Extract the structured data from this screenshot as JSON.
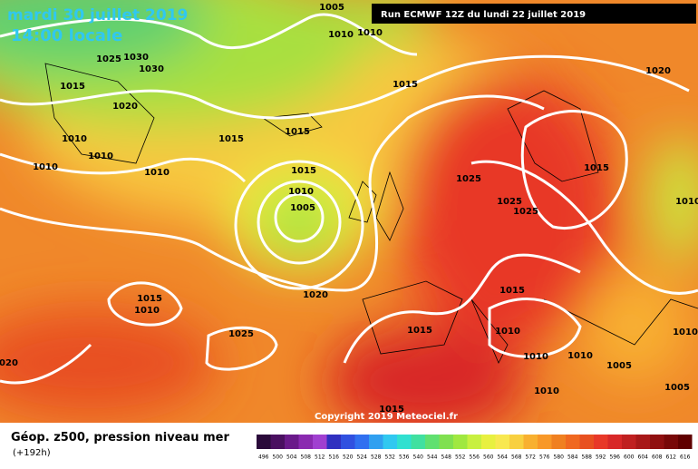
{
  "header": {
    "date": "mardi 30 juillet 2019",
    "time": "14:00 locale",
    "run": "Run ECMWF 12Z du lundi 22 juillet 2019"
  },
  "isobar_labels": [
    1005,
    1010,
    1010,
    1025,
    1030,
    1030,
    1015,
    1020,
    1015,
    1020,
    1015,
    1015,
    1010,
    1010,
    1010,
    1010,
    1015,
    1010,
    1005,
    1025,
    1025,
    1025,
    1015,
    1010,
    1020,
    1015,
    1010,
    1015,
    1025,
    1015,
    1010,
    1010,
    1020,
    1010,
    1010,
    1005,
    1010,
    1005,
    1015
  ],
  "copyright": "Copyright 2019 Meteociel.fr",
  "legend": {
    "title": "Géop. z500, pression niveau mer",
    "subtitle": "(+192h)",
    "scale": [
      496,
      500,
      504,
      508,
      512,
      516,
      520,
      524,
      528,
      532,
      536,
      540,
      544,
      548,
      552,
      556,
      560,
      564,
      568,
      572,
      576,
      580,
      584,
      588,
      592,
      596,
      600,
      604,
      608,
      612,
      616
    ],
    "colors": [
      "#2a0a3a",
      "#4a1060",
      "#6a1a8a",
      "#8a2ab0",
      "#a040d0",
      "#3030c0",
      "#3050e0",
      "#3070f0",
      "#30a0f0",
      "#30c8f0",
      "#30e0d0",
      "#40e0a0",
      "#60e070",
      "#80e050",
      "#a0e840",
      "#c8f040",
      "#e8f040",
      "#f8e850",
      "#f8d040",
      "#f8b030",
      "#f89828",
      "#f08020",
      "#f06820",
      "#e85020",
      "#e83828",
      "#d82828",
      "#c02020",
      "#a81818",
      "#901010",
      "#780808",
      "#600000"
    ]
  }
}
